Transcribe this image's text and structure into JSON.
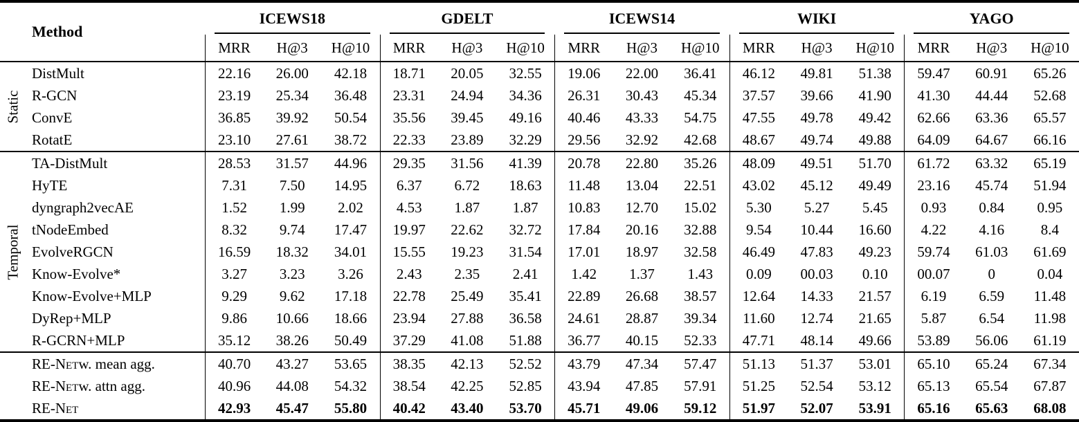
{
  "colors": {
    "background": "#ffffff",
    "text": "#000000",
    "rule": "#000000"
  },
  "table": {
    "method_header": "Method",
    "datasets": [
      "ICEWS18",
      "GDELT",
      "ICEWS14",
      "WIKI",
      "YAGO"
    ],
    "metrics": [
      "MRR",
      "H@3",
      "H@10"
    ],
    "sections": [
      {
        "group_label": "Static",
        "rows": [
          {
            "method": "DistMult",
            "values": [
              "22.16",
              "26.00",
              "42.18",
              "18.71",
              "20.05",
              "32.55",
              "19.06",
              "22.00",
              "36.41",
              "46.12",
              "49.81",
              "51.38",
              "59.47",
              "60.91",
              "65.26"
            ]
          },
          {
            "method": "R-GCN",
            "values": [
              "23.19",
              "25.34",
              "36.48",
              "23.31",
              "24.94",
              "34.36",
              "26.31",
              "30.43",
              "45.34",
              "37.57",
              "39.66",
              "41.90",
              "41.30",
              "44.44",
              "52.68"
            ]
          },
          {
            "method": "ConvE",
            "values": [
              "36.85",
              "39.92",
              "50.54",
              "35.56",
              "39.45",
              "49.16",
              "40.46",
              "43.33",
              "54.75",
              "47.55",
              "49.78",
              "49.42",
              "62.66",
              "63.36",
              "65.57"
            ]
          },
          {
            "method": "RotatE",
            "values": [
              "23.10",
              "27.61",
              "38.72",
              "22.33",
              "23.89",
              "32.29",
              "29.56",
              "32.92",
              "42.68",
              "48.67",
              "49.74",
              "49.88",
              "64.09",
              "64.67",
              "66.16"
            ]
          }
        ]
      },
      {
        "group_label": "Temporal",
        "rows": [
          {
            "method": "TA-DistMult",
            "values": [
              "28.53",
              "31.57",
              "44.96",
              "29.35",
              "31.56",
              "41.39",
              "20.78",
              "22.80",
              "35.26",
              "48.09",
              "49.51",
              "51.70",
              "61.72",
              "63.32",
              "65.19"
            ]
          },
          {
            "method": "HyTE",
            "values": [
              "7.31",
              "7.50",
              "14.95",
              "6.37",
              "6.72",
              "18.63",
              "11.48",
              "13.04",
              "22.51",
              "43.02",
              "45.12",
              "49.49",
              "23.16",
              "45.74",
              "51.94"
            ]
          },
          {
            "method": "dyngraph2vecAE",
            "values": [
              "1.52",
              "1.99",
              "2.02",
              "4.53",
              "1.87",
              "1.87",
              "10.83",
              "12.70",
              "15.02",
              "5.30",
              "5.27",
              "5.45",
              "0.93",
              "0.84",
              "0.95"
            ]
          },
          {
            "method": "tNodeEmbed",
            "values": [
              "8.32",
              "9.74",
              "17.47",
              "19.97",
              "22.62",
              "32.72",
              "17.84",
              "20.16",
              "32.88",
              "9.54",
              "10.44",
              "16.60",
              "4.22",
              "4.16",
              "8.4"
            ]
          },
          {
            "method": "EvolveRGCN",
            "values": [
              "16.59",
              "18.32",
              "34.01",
              "15.55",
              "19.23",
              "31.54",
              "17.01",
              "18.97",
              "32.58",
              "46.49",
              "47.83",
              "49.23",
              "59.74",
              "61.03",
              "61.69"
            ]
          },
          {
            "method": "Know-Evolve*",
            "values": [
              "3.27",
              "3.23",
              "3.26",
              "2.43",
              "2.35",
              "2.41",
              "1.42",
              "1.37",
              "1.43",
              "0.09",
              "00.03",
              "0.10",
              "00.07",
              "0",
              "0.04"
            ]
          },
          {
            "method": "Know-Evolve+MLP",
            "values": [
              "9.29",
              "9.62",
              "17.18",
              "22.78",
              "25.49",
              "35.41",
              "22.89",
              "26.68",
              "38.57",
              "12.64",
              "14.33",
              "21.57",
              "6.19",
              "6.59",
              "11.48"
            ]
          },
          {
            "method": "DyRep+MLP",
            "values": [
              "9.86",
              "10.66",
              "18.66",
              "23.94",
              "27.88",
              "36.58",
              "24.61",
              "28.87",
              "39.34",
              "11.60",
              "12.74",
              "21.65",
              "5.87",
              "6.54",
              "11.98"
            ]
          },
          {
            "method": "R-GCRN+MLP",
            "values": [
              "35.12",
              "38.26",
              "50.49",
              "37.29",
              "41.08",
              "51.88",
              "36.77",
              "40.15",
              "52.33",
              "47.71",
              "48.14",
              "49.66",
              "53.89",
              "56.06",
              "61.19"
            ]
          }
        ]
      },
      {
        "group_label": "",
        "rows": [
          {
            "method_sc": "RE-Net",
            "method_rest": " w. mean agg.",
            "values": [
              "40.70",
              "43.27",
              "53.65",
              "38.35",
              "42.13",
              "52.52",
              "43.79",
              "47.34",
              "57.47",
              "51.13",
              "51.37",
              "53.01",
              "65.10",
              "65.24",
              "67.34"
            ]
          },
          {
            "method_sc": "RE-Net",
            "method_rest": " w. attn agg.",
            "values": [
              "40.96",
              "44.08",
              "54.32",
              "38.54",
              "42.25",
              "52.85",
              "43.94",
              "47.85",
              "57.91",
              "51.25",
              "52.54",
              "53.12",
              "65.13",
              "65.54",
              "67.87"
            ]
          },
          {
            "method_sc": "RE-Net",
            "method_rest": "",
            "bold": true,
            "values": [
              "42.93",
              "45.47",
              "55.80",
              "40.42",
              "43.40",
              "53.70",
              "45.71",
              "49.06",
              "59.12",
              "51.97",
              "52.07",
              "53.91",
              "65.16",
              "65.63",
              "68.08"
            ]
          }
        ]
      }
    ]
  }
}
